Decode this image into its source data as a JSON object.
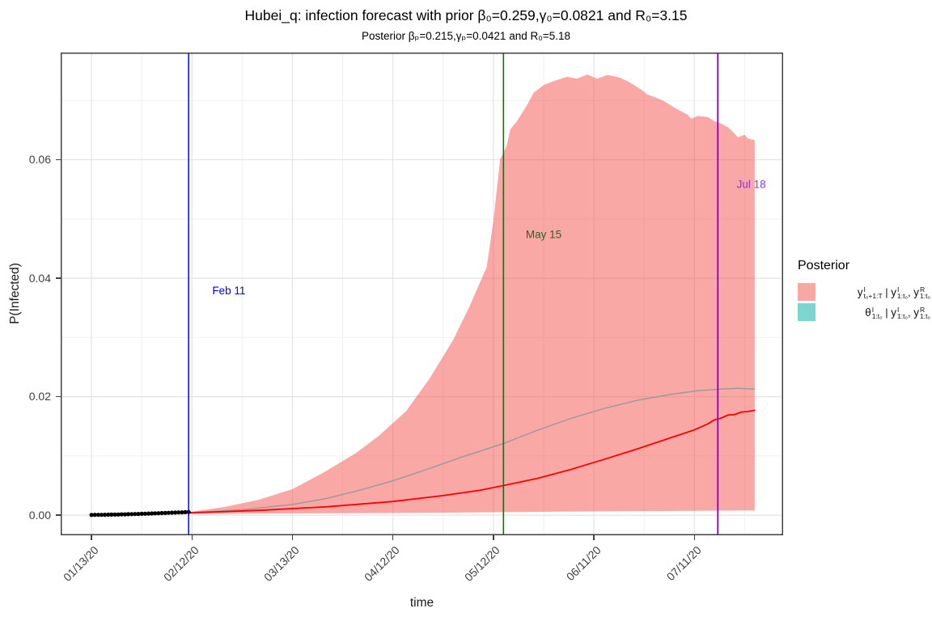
{
  "header": {
    "title": "Hubei_q: infection forecast with prior β₀=0.259,γ₀=0.0821 and R₀=3.15",
    "subtitle": "Posterior βₚ=0.215,γₚ=0.0421 and R₀=5.18"
  },
  "legend": {
    "title": "Posterior",
    "entries": [
      {
        "swatch_color": "#F8A8A4",
        "tokens": [
          {
            "t": "y",
            "up": "I",
            "dn": "t₀+1:T"
          },
          {
            "t": " | "
          },
          {
            "t": "y",
            "up": "I",
            "dn": "1:t₀"
          },
          {
            "t": ", "
          },
          {
            "t": "y",
            "up": "R",
            "dn": "1:t₀"
          }
        ]
      },
      {
        "swatch_color": "#7DD5D1",
        "tokens": [
          {
            "t": "θ",
            "up": "I",
            "dn": "1:t₀"
          },
          {
            "t": " | "
          },
          {
            "t": "y",
            "up": "I",
            "dn": "1:t₀"
          },
          {
            "t": ", "
          },
          {
            "t": "y",
            "up": "R",
            "dn": "1:t₀"
          }
        ]
      }
    ]
  },
  "colors": {
    "ribbon_fill": "#F4544E",
    "ribbon_opacity": 0.51,
    "gray_line": "#9B9B9B",
    "red_line": "#FF0000",
    "observed_points": "#000000",
    "feb_line": "#0000EE",
    "may_line": "#2B641B",
    "jul_line": "#9400D3",
    "jul_label": "#9333EA",
    "grid_major": "#E3E3E3",
    "grid_minor": "#EFEFEF",
    "panel_border": "#404040"
  },
  "chart_data": {
    "type": "area",
    "title": "Hubei_q: infection forecast with prior β₀=0.259,γ₀=0.0821 and R₀=3.15",
    "subtitle": "Posterior βₚ=0.215,γₚ=0.0421 and R₀=5.18",
    "xlabel": "time",
    "ylabel": "P(Infected)",
    "x_unit": "days since 01/13/20",
    "xlim": [
      -9.2,
      206.5
    ],
    "ylim": [
      -0.0034,
      0.0781
    ],
    "x_ticks": [
      {
        "day": 0,
        "label": "01/13/20"
      },
      {
        "day": 30,
        "label": "02/12/20"
      },
      {
        "day": 60,
        "label": "03/13/20"
      },
      {
        "day": 90,
        "label": "04/12/20"
      },
      {
        "day": 120,
        "label": "05/12/20"
      },
      {
        "day": 150,
        "label": "06/11/20"
      },
      {
        "day": 180,
        "label": "07/11/20"
      }
    ],
    "y_ticks": [
      {
        "v": 0.0,
        "label": "0.00"
      },
      {
        "v": 0.02,
        "label": "0.02"
      },
      {
        "v": 0.04,
        "label": "0.04"
      },
      {
        "v": 0.06,
        "label": "0.06"
      }
    ],
    "grid": {
      "major_x_days": [
        0,
        30,
        60,
        90,
        120,
        150,
        180
      ],
      "minor_x_days": [
        15,
        45,
        75,
        105,
        135,
        165,
        195
      ],
      "major_y": [
        0.0,
        0.02,
        0.04,
        0.06
      ],
      "minor_y": [
        0.01,
        0.03,
        0.05,
        0.07
      ]
    },
    "vlines": [
      {
        "label": "Feb 11",
        "day": 29,
        "line_color": "#0000EE",
        "label_color": "#0000EE",
        "width": 1.5,
        "label_day": 41,
        "label_value": 0.0373
      },
      {
        "label": "May 15",
        "day": 123,
        "line_color": "#2B641B",
        "label_color": "#2B641B",
        "width": 1.6,
        "label_day": 135,
        "label_value": 0.0468
      },
      {
        "label": "Jul 18",
        "day": 187,
        "line_color": "#9400D3",
        "label_color": "#9333EA",
        "width": 1.9,
        "label_day": 197,
        "label_value": 0.0552
      }
    ],
    "series": [
      {
        "name": "forecast-credible-ribbon",
        "type": "ribbon",
        "color": "#F4544E",
        "opacity": 0.51,
        "upper": [
          [
            29,
            0.0005
          ],
          [
            40,
            0.0014
          ],
          [
            50,
            0.0026
          ],
          [
            60,
            0.0044
          ],
          [
            69,
            0.0071
          ],
          [
            79,
            0.0105
          ],
          [
            86,
            0.0135
          ],
          [
            94,
            0.0176
          ],
          [
            101,
            0.0231
          ],
          [
            108,
            0.0296
          ],
          [
            113,
            0.0354
          ],
          [
            118,
            0.0419
          ],
          [
            120,
            0.0497
          ],
          [
            122,
            0.0601
          ],
          [
            124,
            0.0624
          ],
          [
            125,
            0.0651
          ],
          [
            127,
            0.0665
          ],
          [
            130,
            0.0692
          ],
          [
            132,
            0.0713
          ],
          [
            135,
            0.0726
          ],
          [
            138,
            0.0733
          ],
          [
            142,
            0.074
          ],
          [
            145,
            0.0737
          ],
          [
            148,
            0.0744
          ],
          [
            151,
            0.0737
          ],
          [
            154,
            0.0743
          ],
          [
            157,
            0.074
          ],
          [
            160,
            0.0733
          ],
          [
            164,
            0.0719
          ],
          [
            166,
            0.071
          ],
          [
            168,
            0.0706
          ],
          [
            171,
            0.0699
          ],
          [
            174,
            0.0688
          ],
          [
            178,
            0.0676
          ],
          [
            179,
            0.0669
          ],
          [
            181,
            0.0674
          ],
          [
            184,
            0.0672
          ],
          [
            186,
            0.0665
          ],
          [
            188,
            0.0661
          ],
          [
            190,
            0.0655
          ],
          [
            192,
            0.0644
          ],
          [
            193,
            0.0638
          ],
          [
            195,
            0.0642
          ],
          [
            196,
            0.0636
          ],
          [
            198,
            0.0633
          ]
        ],
        "lower": [
          [
            29,
            0.0002
          ],
          [
            60,
            0.0003
          ],
          [
            100,
            0.0004
          ],
          [
            140,
            0.0006
          ],
          [
            170,
            0.0007
          ],
          [
            198,
            0.0008
          ]
        ]
      },
      {
        "name": "gray-mean-line",
        "type": "line",
        "color": "#9B9B9B",
        "stroke_width": 1.5,
        "points": [
          [
            29,
            0.0004
          ],
          [
            45,
            0.0009
          ],
          [
            60,
            0.0018
          ],
          [
            70,
            0.0028
          ],
          [
            80,
            0.0042
          ],
          [
            90,
            0.0058
          ],
          [
            100,
            0.0077
          ],
          [
            110,
            0.0097
          ],
          [
            123,
            0.0121
          ],
          [
            133,
            0.0143
          ],
          [
            143,
            0.0163
          ],
          [
            153,
            0.018
          ],
          [
            163,
            0.0194
          ],
          [
            173,
            0.0204
          ],
          [
            181,
            0.021
          ],
          [
            188,
            0.0213
          ],
          [
            193,
            0.0214
          ],
          [
            198,
            0.0213
          ]
        ]
      },
      {
        "name": "red-forecast-line",
        "type": "line",
        "color": "#FF0000",
        "stroke_width": 1.8,
        "points": [
          [
            29,
            0.0004
          ],
          [
            50,
            0.0008
          ],
          [
            70,
            0.0014
          ],
          [
            90,
            0.0023
          ],
          [
            105,
            0.0033
          ],
          [
            116,
            0.0042
          ],
          [
            123,
            0.005
          ],
          [
            133,
            0.0062
          ],
          [
            143,
            0.0077
          ],
          [
            153,
            0.0094
          ],
          [
            163,
            0.0112
          ],
          [
            172,
            0.0129
          ],
          [
            180,
            0.0144
          ],
          [
            184,
            0.0154
          ],
          [
            186,
            0.0161
          ],
          [
            188,
            0.0164
          ],
          [
            190,
            0.0169
          ],
          [
            192,
            0.017
          ],
          [
            194,
            0.0174
          ],
          [
            196,
            0.0175
          ],
          [
            198,
            0.0177
          ]
        ]
      },
      {
        "name": "observed-points",
        "type": "scatter",
        "color": "#000000",
        "r": 2.6,
        "points": [
          [
            0,
            4e-05
          ],
          [
            1,
            5e-05
          ],
          [
            2,
            5e-05
          ],
          [
            3,
            6e-05
          ],
          [
            4,
            7e-05
          ],
          [
            5,
            8e-05
          ],
          [
            6,
            9e-05
          ],
          [
            7,
            0.0001
          ],
          [
            8,
            0.00011
          ],
          [
            9,
            0.00013
          ],
          [
            10,
            0.00014
          ],
          [
            11,
            0.00016
          ],
          [
            12,
            0.00017
          ],
          [
            13,
            0.00019
          ],
          [
            14,
            0.00021
          ],
          [
            15,
            0.00023
          ],
          [
            16,
            0.00025
          ],
          [
            17,
            0.00027
          ],
          [
            18,
            0.00029
          ],
          [
            19,
            0.00031
          ],
          [
            20,
            0.00033
          ],
          [
            21,
            0.00035
          ],
          [
            22,
            0.00037
          ],
          [
            23,
            0.0004
          ],
          [
            24,
            0.00042
          ],
          [
            25,
            0.00044
          ],
          [
            26,
            0.00046
          ],
          [
            27,
            0.00048
          ],
          [
            28,
            0.00051
          ],
          [
            29,
            0.00053
          ]
        ]
      }
    ]
  }
}
